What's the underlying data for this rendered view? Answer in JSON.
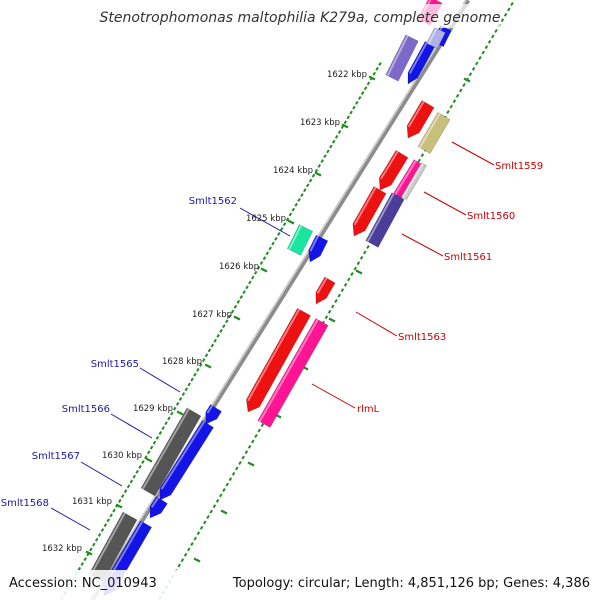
{
  "title": "Stenotrophomonas maltophilia K279a, complete genome",
  "footer": {
    "accession": "Accession: NC_010943",
    "topology": "Topology: circular; Length: 4,851,126 bp; Genes: 4,386"
  },
  "colors": {
    "backbone": "#888888",
    "tick": "#228B22",
    "label_plus": "#1a1aa8",
    "label_minus": "#cc0000"
  },
  "kbp_labels": [
    "1622 kbp",
    "1623 kbp",
    "1624 kbp",
    "1625 kbp",
    "1626 kbp",
    "1627 kbp",
    "1628 kbp",
    "1629 kbp",
    "1630 kbp",
    "1631 kbp",
    "1632 kbp"
  ],
  "gene_labels": [
    {
      "text": "Smlt1559",
      "strand": "minus"
    },
    {
      "text": "Smlt1560",
      "strand": "minus"
    },
    {
      "text": "Smlt1561",
      "strand": "minus"
    },
    {
      "text": "Smlt1562",
      "strand": "plus"
    },
    {
      "text": "Smlt1563",
      "strand": "minus"
    },
    {
      "text": "rlmL",
      "strand": "minus"
    },
    {
      "text": "Smlt1565",
      "strand": "plus"
    },
    {
      "text": "Smlt1566",
      "strand": "plus"
    },
    {
      "text": "Smlt1567",
      "strand": "plus"
    },
    {
      "text": "Smlt1568",
      "strand": "plus"
    }
  ]
}
